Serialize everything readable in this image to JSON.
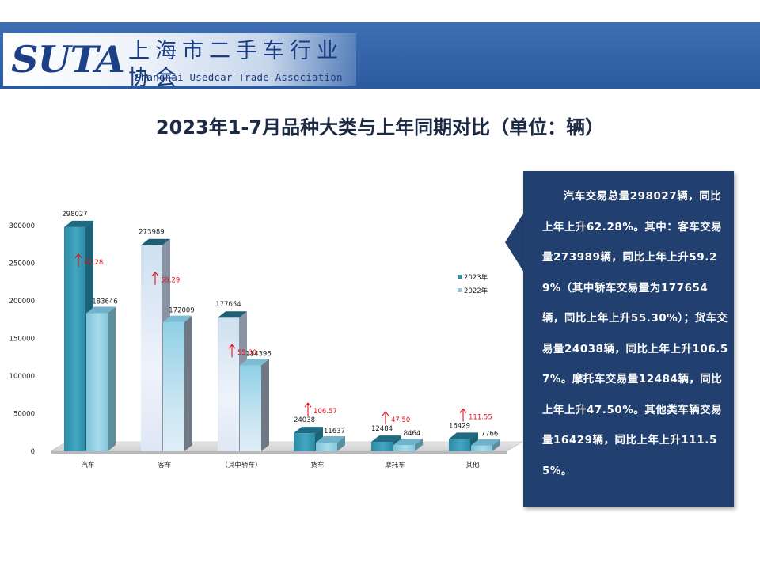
{
  "header": {
    "logo": "SUTA",
    "assoc_cn": "上海市二手车行业协会",
    "assoc_en": "Shanghai Usedcar Trade Association",
    "colors": {
      "band": "#2b5a9f",
      "logo": "#1d3f86"
    }
  },
  "page_title": "2023年1-7月品种大类与上年同期对比（单位：辆）",
  "chart_data": {
    "type": "bar",
    "title": "",
    "xlabel": "",
    "ylabel": "",
    "categories": [
      "汽车",
      "客车",
      "（其中轿车）",
      "货车",
      "摩托车",
      "其他"
    ],
    "series": [
      {
        "name": "2023年",
        "values": [
          298027,
          273989,
          177654,
          24038,
          12484,
          16429
        ]
      },
      {
        "name": "2022年",
        "values": [
          183646,
          172009,
          114396,
          11637,
          8464,
          7766
        ]
      }
    ],
    "growth_labels": [
      "62.28",
      "59.29",
      "55.30",
      "106.57",
      "47.50",
      "111.55"
    ],
    "yticks": [
      "0",
      "50000",
      "100000",
      "150000",
      "200000",
      "250000",
      "300000"
    ],
    "ylim": [
      0,
      300000
    ],
    "legend_position": "right",
    "grid": false,
    "three_d": true,
    "colors": {
      "2023年": "#2e8fa8",
      "2022年": "#8fcde0",
      "growth_arrow": "#e0141c"
    }
  },
  "callout": {
    "text": "汽车交易总量298027辆，同比上年上升62.28%。其中：客车交易量273989辆，同比上年上升59.29%（其中轿车交易量为177654辆，同比上年上升55.30%）；货车交易量24038辆，同比上年上升106.57%。摩托车交易量12484辆，同比上年上升47.50%。其他类车辆交易量16429辆，同比上年上升111.55%。",
    "colors": {
      "background": "#22406f",
      "text": "#ffffff"
    }
  }
}
